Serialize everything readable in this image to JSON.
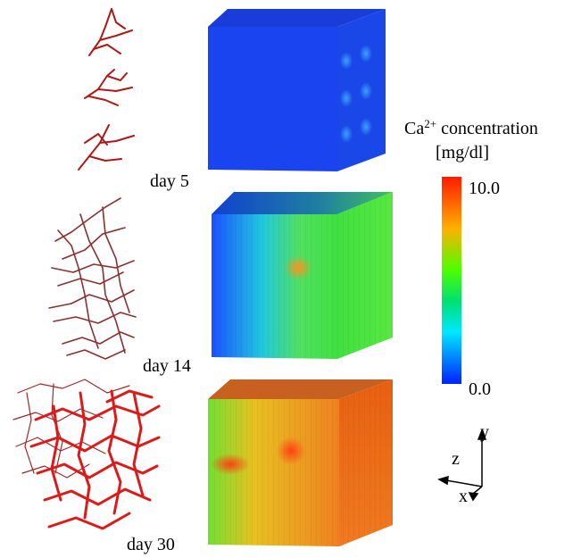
{
  "panels": [
    {
      "label": "day 5"
    },
    {
      "label": "day 14"
    },
    {
      "label": "day 30"
    }
  ],
  "colorbar": {
    "title": "Ca",
    "superscript": "2+",
    "title_rest": " concentration",
    "unit": "[mg/dl]",
    "max_label": "10.0",
    "min_label": "0.0"
  },
  "axes": {
    "y": "y",
    "z": "z",
    "x": "x"
  }
}
